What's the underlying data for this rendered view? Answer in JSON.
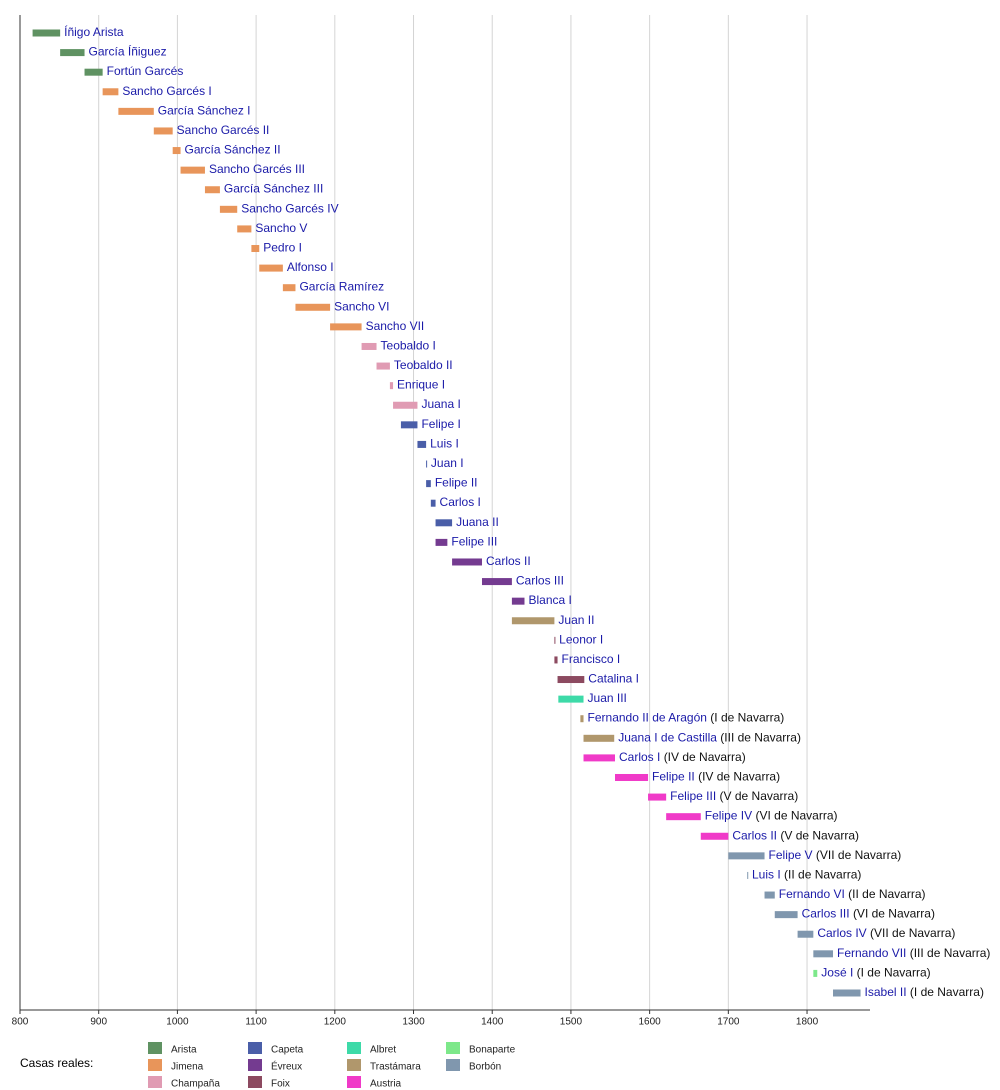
{
  "chart_data": {
    "type": "timeline",
    "xlim": [
      800,
      1880
    ],
    "xticks": [
      800,
      900,
      1000,
      1100,
      1200,
      1300,
      1400,
      1500,
      1600,
      1700,
      1800
    ],
    "grid": true,
    "legend_title": "Casas reales:",
    "houses": [
      {
        "name": "Arista",
        "color": "#5f9262"
      },
      {
        "name": "Jimena",
        "color": "#e8955a"
      },
      {
        "name": "Champaña",
        "color": "#e09bb3"
      },
      {
        "name": "Capeta",
        "color": "#4a5ea8"
      },
      {
        "name": "Évreux",
        "color": "#743b90"
      },
      {
        "name": "Foix",
        "color": "#8c4a60"
      },
      {
        "name": "Albret",
        "color": "#3ddaa8"
      },
      {
        "name": "Trastámara",
        "color": "#b0976c"
      },
      {
        "name": "Austria",
        "color": "#f03ac8"
      },
      {
        "name": "Bonaparte",
        "color": "#7de88a"
      },
      {
        "name": "Borbón",
        "color": "#8097ae"
      }
    ],
    "reigns": [
      {
        "name": "Íñigo Arista",
        "house": 0,
        "start": 816,
        "end": 851
      },
      {
        "name": "García Íñiguez",
        "house": 0,
        "start": 851,
        "end": 882
      },
      {
        "name": "Fortún Garcés",
        "house": 0,
        "start": 882,
        "end": 905
      },
      {
        "name": "Sancho Garcés I",
        "house": 1,
        "start": 905,
        "end": 925
      },
      {
        "name": "García Sánchez I",
        "house": 1,
        "start": 925,
        "end": 970
      },
      {
        "name": "Sancho Garcés II",
        "house": 1,
        "start": 970,
        "end": 994
      },
      {
        "name": "García Sánchez II",
        "house": 1,
        "start": 994,
        "end": 1004
      },
      {
        "name": "Sancho Garcés III",
        "house": 1,
        "start": 1004,
        "end": 1035
      },
      {
        "name": "García Sánchez III",
        "house": 1,
        "start": 1035,
        "end": 1054
      },
      {
        "name": "Sancho Garcés IV",
        "house": 1,
        "start": 1054,
        "end": 1076
      },
      {
        "name": "Sancho V",
        "house": 1,
        "start": 1076,
        "end": 1094
      },
      {
        "name": "Pedro I",
        "house": 1,
        "start": 1094,
        "end": 1104
      },
      {
        "name": "Alfonso I",
        "house": 1,
        "start": 1104,
        "end": 1134
      },
      {
        "name": "García Ramírez",
        "house": 1,
        "start": 1134,
        "end": 1150
      },
      {
        "name": "Sancho VI",
        "house": 1,
        "start": 1150,
        "end": 1194
      },
      {
        "name": "Sancho VII",
        "house": 1,
        "start": 1194,
        "end": 1234
      },
      {
        "name": "Teobaldo I",
        "house": 2,
        "start": 1234,
        "end": 1253
      },
      {
        "name": "Teobaldo II",
        "house": 2,
        "start": 1253,
        "end": 1270
      },
      {
        "name": "Enrique I",
        "house": 2,
        "start": 1270,
        "end": 1274
      },
      {
        "name": "Juana I",
        "house": 2,
        "start": 1274,
        "end": 1305
      },
      {
        "name": "Felipe I",
        "house": 3,
        "start": 1284,
        "end": 1305
      },
      {
        "name": "Luis I",
        "house": 3,
        "start": 1305,
        "end": 1316
      },
      {
        "name": "Juan I",
        "house": 3,
        "start": 1316,
        "end": 1317
      },
      {
        "name": "Felipe II",
        "house": 3,
        "start": 1316,
        "end": 1322
      },
      {
        "name": "Carlos I",
        "house": 3,
        "start": 1322,
        "end": 1328
      },
      {
        "name": "Juana II",
        "house": 3,
        "start": 1328,
        "end": 1349
      },
      {
        "name": "Felipe III",
        "house": 4,
        "start": 1328,
        "end": 1343
      },
      {
        "name": "Carlos II",
        "house": 4,
        "start": 1349,
        "end": 1387
      },
      {
        "name": "Carlos III",
        "house": 4,
        "start": 1387,
        "end": 1425
      },
      {
        "name": "Blanca I",
        "house": 4,
        "start": 1425,
        "end": 1441
      },
      {
        "name": "Juan II",
        "house": 7,
        "start": 1425,
        "end": 1479
      },
      {
        "name": "Leonor I",
        "house": 5,
        "start": 1479,
        "end": 1480
      },
      {
        "name": "Francisco I",
        "house": 5,
        "start": 1479,
        "end": 1483
      },
      {
        "name": "Catalina I",
        "house": 5,
        "start": 1483,
        "end": 1517
      },
      {
        "name": "Juan III",
        "house": 6,
        "start": 1484,
        "end": 1516
      },
      {
        "name": "Fernando II de Aragón",
        "note": "(I de Navarra)",
        "house": 7,
        "start": 1512,
        "end": 1516
      },
      {
        "name": "Juana I de Castilla",
        "note": "(III de Navarra)",
        "house": 7,
        "start": 1516,
        "end": 1555
      },
      {
        "name": "Carlos I",
        "note": "(IV de Navarra)",
        "house": 8,
        "start": 1516,
        "end": 1556
      },
      {
        "name": "Felipe II",
        "note": "(IV de Navarra)",
        "house": 8,
        "start": 1556,
        "end": 1598
      },
      {
        "name": "Felipe III",
        "note": "(V de Navarra)",
        "house": 8,
        "start": 1598,
        "end": 1621
      },
      {
        "name": "Felipe IV",
        "note": "(VI de Navarra)",
        "house": 8,
        "start": 1621,
        "end": 1665
      },
      {
        "name": "Carlos II",
        "note": "(V de Navarra)",
        "house": 8,
        "start": 1665,
        "end": 1700
      },
      {
        "name": "Felipe V",
        "note": "(VII de Navarra)",
        "house": 10,
        "start": 1700,
        "end": 1746
      },
      {
        "name": "Luis I",
        "note": "(II de Navarra)",
        "house": 10,
        "start": 1724,
        "end": 1725
      },
      {
        "name": "Fernando VI",
        "note": "(II de Navarra)",
        "house": 10,
        "start": 1746,
        "end": 1759
      },
      {
        "name": "Carlos III",
        "note": "(VI de Navarra)",
        "house": 10,
        "start": 1759,
        "end": 1788
      },
      {
        "name": "Carlos IV",
        "note": "(VII de Navarra)",
        "house": 10,
        "start": 1788,
        "end": 1808
      },
      {
        "name": "Fernando VII",
        "note": "(III de Navarra)",
        "house": 10,
        "start": 1808,
        "end": 1833
      },
      {
        "name": "José I",
        "note": "(I de Navarra)",
        "house": 9,
        "start": 1808,
        "end": 1813
      },
      {
        "name": "Isabel II",
        "note": "(I de Navarra)",
        "house": 10,
        "start": 1833,
        "end": 1868
      }
    ]
  }
}
